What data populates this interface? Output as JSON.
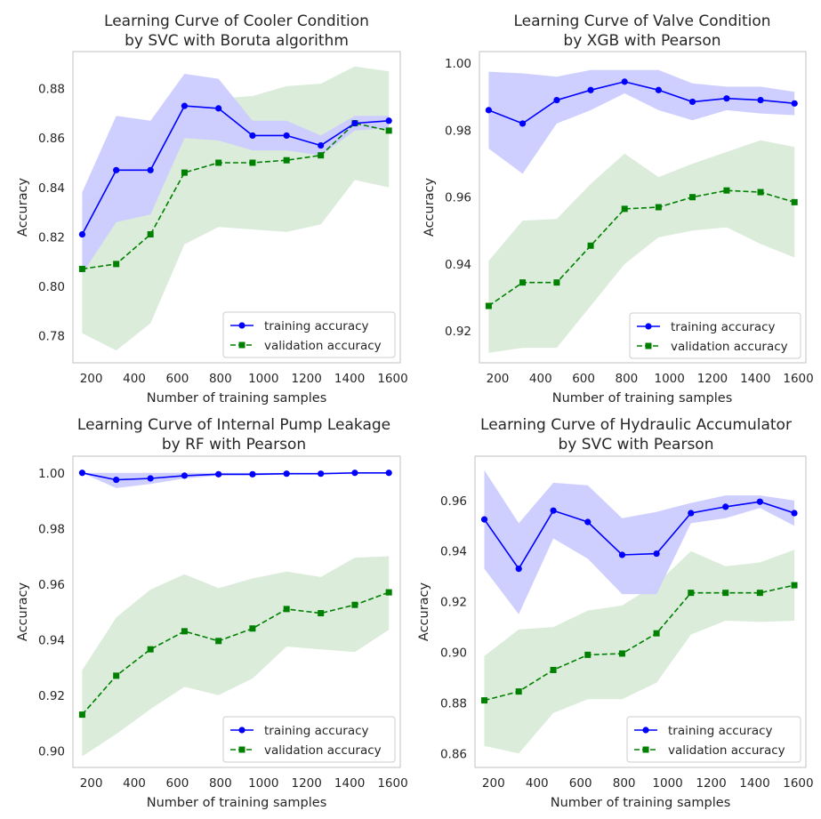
{
  "colors": {
    "training": "#0000ff",
    "validation": "#008000",
    "training_band": "#ccccff",
    "validation_band": "#d9ebd9",
    "frame": "#cccccc"
  },
  "chart_data": [
    {
      "type": "line",
      "title_lines": [
        "Learning Curve of Cooler Condition",
        "by SVC with Boruta algorithm"
      ],
      "xlabel": "Number of training samples",
      "ylabel": "Accuracy",
      "xlim": [
        115,
        1635
      ],
      "ylim": [
        0.769,
        0.895
      ],
      "xticks": [
        200,
        400,
        600,
        800,
        1000,
        1200,
        1400,
        1600
      ],
      "yticks": [
        0.78,
        0.8,
        0.82,
        0.84,
        0.86,
        0.88
      ],
      "ytick_labels": [
        "0.78",
        "0.80",
        "0.82",
        "0.84",
        "0.86",
        "0.88"
      ],
      "legend": [
        "training accuracy",
        "validation accuracy"
      ],
      "legend_position": "lower-right",
      "x": [
        158,
        316,
        475,
        633,
        791,
        949,
        1107,
        1266,
        1424,
        1582
      ],
      "series": [
        {
          "name": "training accuracy",
          "values": [
            0.821,
            0.847,
            0.847,
            0.873,
            0.872,
            0.861,
            0.861,
            0.857,
            0.866,
            0.867
          ],
          "upper": [
            0.838,
            0.869,
            0.867,
            0.886,
            0.884,
            0.867,
            0.867,
            0.861,
            0.869,
            0.869
          ],
          "lower": [
            0.805,
            0.826,
            0.829,
            0.86,
            0.859,
            0.855,
            0.855,
            0.853,
            0.863,
            0.864
          ]
        },
        {
          "name": "validation accuracy",
          "values": [
            0.807,
            0.809,
            0.821,
            0.846,
            0.85,
            0.85,
            0.851,
            0.853,
            0.866,
            0.863
          ],
          "upper": [
            0.832,
            0.844,
            0.858,
            0.875,
            0.876,
            0.877,
            0.881,
            0.882,
            0.889,
            0.887
          ],
          "lower": [
            0.781,
            0.774,
            0.785,
            0.817,
            0.824,
            0.823,
            0.822,
            0.825,
            0.843,
            0.84
          ]
        }
      ]
    },
    {
      "type": "line",
      "title_lines": [
        "Learning Curve of Valve Condition",
        "by XGB with Pearson"
      ],
      "xlabel": "Number of training samples",
      "ylabel": "Accuracy",
      "xlim": [
        115,
        1635
      ],
      "ylim": [
        0.9105,
        1.0035
      ],
      "xticks": [
        200,
        400,
        600,
        800,
        1000,
        1200,
        1400,
        1600
      ],
      "yticks": [
        0.92,
        0.94,
        0.96,
        0.98,
        1.0
      ],
      "ytick_labels": [
        "0.92",
        "0.94",
        "0.96",
        "0.98",
        "1.00"
      ],
      "legend": [
        "training accuracy",
        "validation accuracy"
      ],
      "legend_position": "lower-right",
      "x": [
        158,
        316,
        475,
        633,
        791,
        949,
        1107,
        1266,
        1424,
        1582
      ],
      "series": [
        {
          "name": "training accuracy",
          "values": [
            0.986,
            0.982,
            0.989,
            0.992,
            0.9945,
            0.992,
            0.9885,
            0.9895,
            0.989,
            0.988
          ],
          "upper": [
            0.9975,
            0.997,
            0.996,
            0.998,
            0.998,
            0.998,
            0.994,
            0.993,
            0.993,
            0.9915
          ],
          "lower": [
            0.9745,
            0.967,
            0.982,
            0.986,
            0.991,
            0.986,
            0.983,
            0.986,
            0.985,
            0.9845
          ]
        },
        {
          "name": "validation accuracy",
          "values": [
            0.9275,
            0.9345,
            0.9345,
            0.9455,
            0.9565,
            0.957,
            0.96,
            0.962,
            0.9615,
            0.9585
          ],
          "upper": [
            0.941,
            0.953,
            0.9535,
            0.964,
            0.973,
            0.966,
            0.97,
            0.9735,
            0.977,
            0.975
          ],
          "lower": [
            0.9135,
            0.915,
            0.915,
            0.9275,
            0.94,
            0.948,
            0.95,
            0.951,
            0.946,
            0.942
          ]
        }
      ]
    },
    {
      "type": "line",
      "title_lines": [
        "Learning Curve of Internal Pump Leakage",
        "by RF with Pearson"
      ],
      "xlabel": "Number of training samples",
      "ylabel": "Accuracy",
      "xlim": [
        115,
        1635
      ],
      "ylim": [
        0.894,
        1.006
      ],
      "xticks": [
        200,
        400,
        600,
        800,
        1000,
        1200,
        1400,
        1600
      ],
      "yticks": [
        0.9,
        0.92,
        0.94,
        0.96,
        0.98,
        1.0
      ],
      "ytick_labels": [
        "0.90",
        "0.92",
        "0.94",
        "0.96",
        "0.98",
        "1.00"
      ],
      "legend": [
        "training accuracy",
        "validation accuracy"
      ],
      "legend_position": "lower-right",
      "x": [
        158,
        316,
        475,
        633,
        791,
        949,
        1107,
        1266,
        1424,
        1582
      ],
      "series": [
        {
          "name": "training accuracy",
          "values": [
            1.0,
            0.9975,
            0.998,
            0.999,
            0.9995,
            0.9995,
            0.9997,
            0.9997,
            1.0,
            1.0
          ],
          "upper": [
            1.0,
            1.0,
            1.0,
            1.0,
            1.0,
            1.0,
            1.0,
            1.0,
            1.0,
            1.0
          ],
          "lower": [
            1.0,
            0.9945,
            0.996,
            0.998,
            0.999,
            0.999,
            0.9994,
            0.9994,
            1.0,
            1.0
          ]
        },
        {
          "name": "validation accuracy",
          "values": [
            0.913,
            0.927,
            0.9365,
            0.943,
            0.9395,
            0.944,
            0.951,
            0.9495,
            0.9525,
            0.957
          ],
          "upper": [
            0.929,
            0.948,
            0.958,
            0.9635,
            0.9585,
            0.962,
            0.9645,
            0.9625,
            0.9695,
            0.97
          ],
          "lower": [
            0.898,
            0.906,
            0.915,
            0.923,
            0.92,
            0.926,
            0.9375,
            0.9365,
            0.9355,
            0.9435
          ]
        }
      ]
    },
    {
      "type": "line",
      "title_lines": [
        "Learning Curve of Hydraulic Accumulator",
        "by SVC with Pearson"
      ],
      "xlabel": "Number of training samples",
      "ylabel": "Accuracy",
      "xlim": [
        115,
        1635
      ],
      "ylim": [
        0.8545,
        0.9775
      ],
      "xticks": [
        200,
        400,
        600,
        800,
        1000,
        1200,
        1400,
        1600
      ],
      "yticks": [
        0.86,
        0.88,
        0.9,
        0.92,
        0.94,
        0.96
      ],
      "ytick_labels": [
        "0.86",
        "0.88",
        "0.90",
        "0.92",
        "0.94",
        "0.96"
      ],
      "legend": [
        "training accuracy",
        "validation accuracy"
      ],
      "legend_position": "lower-right",
      "x": [
        158,
        316,
        475,
        633,
        791,
        949,
        1107,
        1266,
        1424,
        1582
      ],
      "series": [
        {
          "name": "training accuracy",
          "values": [
            0.9525,
            0.933,
            0.956,
            0.9515,
            0.9385,
            0.939,
            0.955,
            0.9575,
            0.9595,
            0.955
          ],
          "upper": [
            0.972,
            0.951,
            0.967,
            0.966,
            0.953,
            0.9555,
            0.959,
            0.962,
            0.962,
            0.96
          ],
          "lower": [
            0.933,
            0.915,
            0.945,
            0.937,
            0.923,
            0.923,
            0.951,
            0.953,
            0.957,
            0.95
          ]
        },
        {
          "name": "validation accuracy",
          "values": [
            0.881,
            0.8845,
            0.893,
            0.899,
            0.8995,
            0.9075,
            0.9235,
            0.9235,
            0.9235,
            0.9265
          ],
          "upper": [
            0.8985,
            0.909,
            0.91,
            0.9165,
            0.9185,
            0.927,
            0.94,
            0.934,
            0.9355,
            0.9405
          ],
          "lower": [
            0.863,
            0.86,
            0.876,
            0.8815,
            0.8815,
            0.888,
            0.907,
            0.9125,
            0.912,
            0.9125
          ]
        }
      ]
    }
  ]
}
